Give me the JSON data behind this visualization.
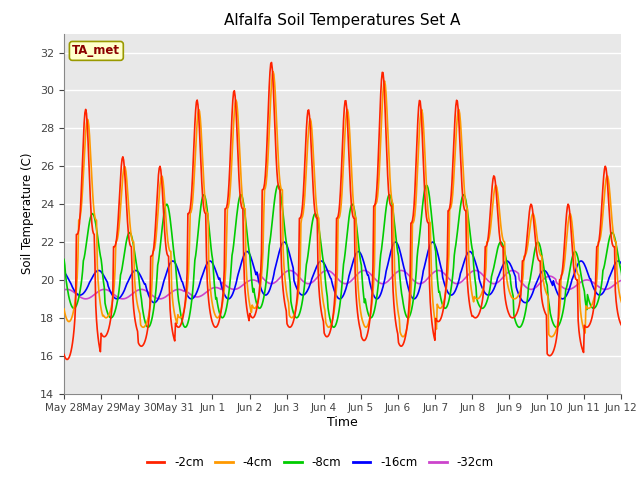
{
  "title": "Alfalfa Soil Temperatures Set A",
  "xlabel": "Time",
  "ylabel": "Soil Temperature (C)",
  "ylim": [
    14,
    33
  ],
  "yticks": [
    14,
    16,
    18,
    20,
    22,
    24,
    26,
    28,
    30,
    32
  ],
  "fig_bg_color": "#ffffff",
  "plot_bg_color": "#e8e8e8",
  "grid_color": "#ffffff",
  "annotation_text": "TA_met",
  "annotation_color": "#8b0000",
  "annotation_bg": "#ffffcc",
  "annotation_edge": "#999900",
  "line_colors": {
    "-2cm": "#ff2200",
    "-4cm": "#ff9900",
    "-8cm": "#00cc00",
    "-16cm": "#0000ff",
    "-32cm": "#cc44cc"
  },
  "legend_labels": [
    "-2cm",
    "-4cm",
    "-8cm",
    "-16cm",
    "-32cm"
  ],
  "x_tick_labels": [
    "May 28",
    "May 29",
    "May 30",
    "May 31",
    "Jun 1",
    "Jun 2",
    "Jun 3",
    "Jun 4",
    "Jun 5",
    "Jun 6",
    "Jun 7",
    "Jun 8",
    "Jun 9",
    "Jun 10",
    "Jun 11",
    "Jun 12"
  ]
}
